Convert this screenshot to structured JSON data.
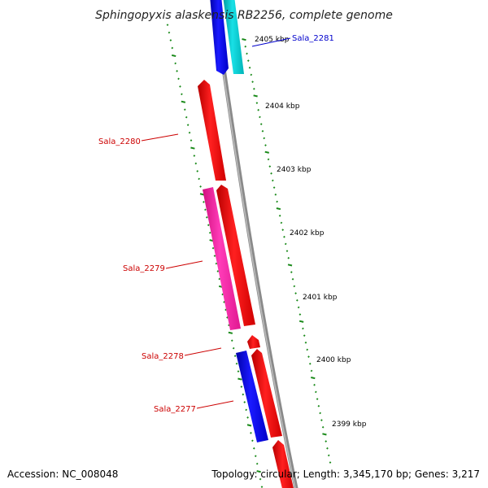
{
  "title": "Sphingopyxis alaskensis RB2256, complete genome",
  "footer": {
    "accession": "Accession: NC_008048",
    "summary": "Topology: circular; Length: 3,345,170 bp; Genes: 3,217"
  },
  "tick_labels": [
    "2405 kbp",
    "2404 kbp",
    "2403 kbp",
    "2402 kbp",
    "2401 kbp",
    "2400 kbp",
    "2399 kbp"
  ],
  "genes": [
    {
      "name": "Sala_2281",
      "color": "#0000cc"
    },
    {
      "name": "Sala_2280",
      "color": "#cc0000"
    },
    {
      "name": "Sala_2279",
      "color": "#cc0000"
    },
    {
      "name": "Sala_2278",
      "color": "#cc0000"
    },
    {
      "name": "Sala_2277",
      "color": "#cc0000"
    }
  ],
  "colors": {
    "backbone": "#777777",
    "tick_marks": "#1a8a1a",
    "forward_cds": "#ff0000",
    "reverse_cds": "#0000ee",
    "cyan_feature": "#00c8cc",
    "magenta_feature": "#ff1aa8"
  }
}
